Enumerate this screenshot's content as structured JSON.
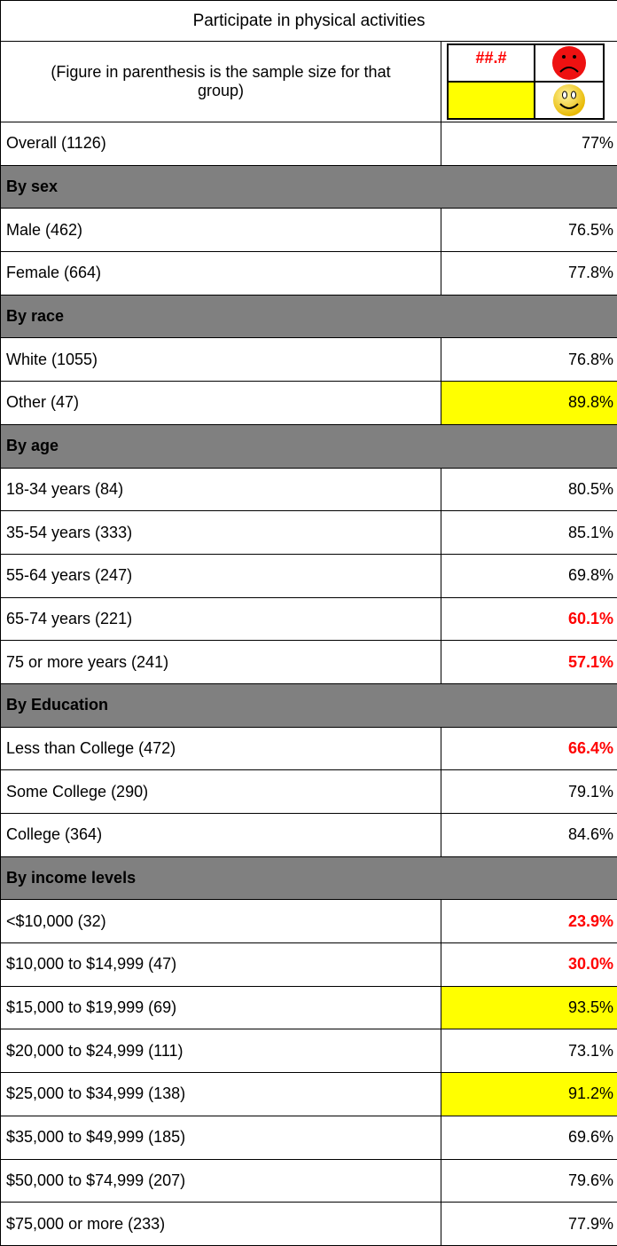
{
  "title": "Participate in physical activities",
  "legend": {
    "note": "(Figure in parenthesis is the sample size for that group)",
    "low_sample": "##.#",
    "low_color": "#ff0000",
    "high_color": "#ffff00"
  },
  "rows": [
    {
      "label": "Overall (1126)",
      "value": "77%"
    },
    {
      "section": "By sex"
    },
    {
      "label": "Male (462)",
      "value": "76.5%"
    },
    {
      "label": "Female (664)",
      "value": "77.8%"
    },
    {
      "section": "By race"
    },
    {
      "label": "White (1055)",
      "value": "76.8%"
    },
    {
      "label": "Other (47)",
      "value": "89.8%",
      "bg": "#ffff00"
    },
    {
      "section": "By age"
    },
    {
      "label": "18-34 years (84)",
      "value": "80.5%"
    },
    {
      "label": "35-54 years (333)",
      "value": "85.1%"
    },
    {
      "label": "55-64 years (247)",
      "value": "69.8%"
    },
    {
      "label": "65-74 years (221)",
      "value": "60.1%",
      "color": "#ff0000"
    },
    {
      "label": "75 or more years (241)",
      "value": "57.1%",
      "color": "#ff0000"
    },
    {
      "section": "By Education"
    },
    {
      "label": "Less than College (472)",
      "value": "66.4%",
      "color": "#ff0000"
    },
    {
      "label": "Some College (290)",
      "value": "79.1%"
    },
    {
      "label": "College (364)",
      "value": "84.6%"
    },
    {
      "section": "By income levels"
    },
    {
      "label": "<$10,000 (32)",
      "value": "23.9%",
      "color": "#ff0000"
    },
    {
      "label": "$10,000 to $14,999 (47)",
      "value": "30.0%",
      "color": "#ff0000"
    },
    {
      "label": "$15,000 to $19,999 (69)",
      "value": "93.5%",
      "bg": "#ffff00"
    },
    {
      "label": "$20,000 to $24,999 (111)",
      "value": "73.1%"
    },
    {
      "label": "$25,000 to $34,999 (138)",
      "value": "91.2%",
      "bg": "#ffff00"
    },
    {
      "label": "$35,000 to $49,999 (185)",
      "value": "69.6%"
    },
    {
      "label": "$50,000 to $74,999 (207)",
      "value": "79.6%"
    },
    {
      "label": "$75,000 or more (233)",
      "value": "77.9%"
    }
  ]
}
